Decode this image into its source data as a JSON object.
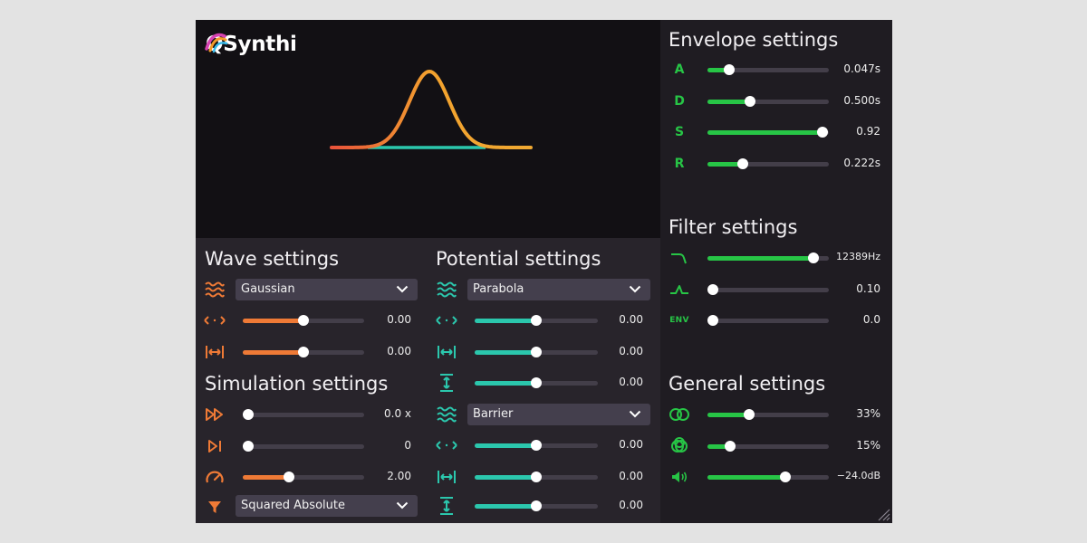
{
  "app": {
    "title": "QSynthi"
  },
  "colors": {
    "orange": "#ef7a36",
    "teal": "#2bc7ad",
    "green": "#27c546",
    "panel": "#28242b",
    "side_panel": "#1f1c22",
    "track": "#433e49"
  },
  "wave": {
    "title": "Wave settings",
    "shape": {
      "icon": "wave-icon",
      "value": "Gaussian"
    },
    "sliders": [
      {
        "icon": "shift-icon",
        "level": 0.5,
        "value": "0.00"
      },
      {
        "icon": "width-icon",
        "level": 0.5,
        "value": "0.00"
      }
    ]
  },
  "simulation": {
    "title": "Simulation settings",
    "sliders": [
      {
        "icon": "fast-forward-icon",
        "level": 0.0,
        "value": "0.0 x"
      },
      {
        "icon": "step-icon",
        "level": 0.0,
        "value": "0"
      },
      {
        "icon": "speedometer-icon",
        "level": 0.38,
        "value": "2.00"
      }
    ],
    "measurement": {
      "icon": "funnel-icon",
      "value": "Squared Absolute"
    }
  },
  "potential": {
    "title": "Potential settings",
    "first": {
      "icon": "wave-icon",
      "value": "Parabola",
      "sliders": [
        {
          "icon": "shift-icon",
          "level": 0.5,
          "value": "0.00"
        },
        {
          "icon": "width-icon",
          "level": 0.5,
          "value": "0.00"
        },
        {
          "icon": "height-icon",
          "level": 0.5,
          "value": "0.00"
        }
      ]
    },
    "second": {
      "icon": "wave-icon",
      "value": "Barrier",
      "sliders": [
        {
          "icon": "shift-icon",
          "level": 0.5,
          "value": "0.00"
        },
        {
          "icon": "width-icon",
          "level": 0.5,
          "value": "0.00"
        },
        {
          "icon": "height-icon",
          "level": 0.5,
          "value": "0.00"
        }
      ]
    }
  },
  "envelope": {
    "title": "Envelope settings",
    "sliders": [
      {
        "label": "A",
        "level": 0.18,
        "value": "0.047s"
      },
      {
        "label": "D",
        "level": 0.35,
        "value": "0.500s"
      },
      {
        "label": "S",
        "level": 0.95,
        "value": "0.92"
      },
      {
        "label": "R",
        "level": 0.29,
        "value": "0.222s"
      }
    ]
  },
  "filter": {
    "title": "Filter settings",
    "sliders": [
      {
        "icon": "lowpass-icon",
        "level": 0.87,
        "value": "12389Hz"
      },
      {
        "icon": "resonance-icon",
        "level": 0.0,
        "value": "0.10"
      },
      {
        "label": "ENV",
        "level": 0.0,
        "value": "0.0"
      }
    ]
  },
  "general": {
    "title": "General settings",
    "sliders": [
      {
        "icon": "stereo-icon",
        "level": 0.34,
        "value": "33%"
      },
      {
        "icon": "rings-icon",
        "level": 0.19,
        "value": "15%"
      },
      {
        "icon": "volume-icon",
        "level": 0.64,
        "value": "−24.0dB"
      }
    ]
  }
}
